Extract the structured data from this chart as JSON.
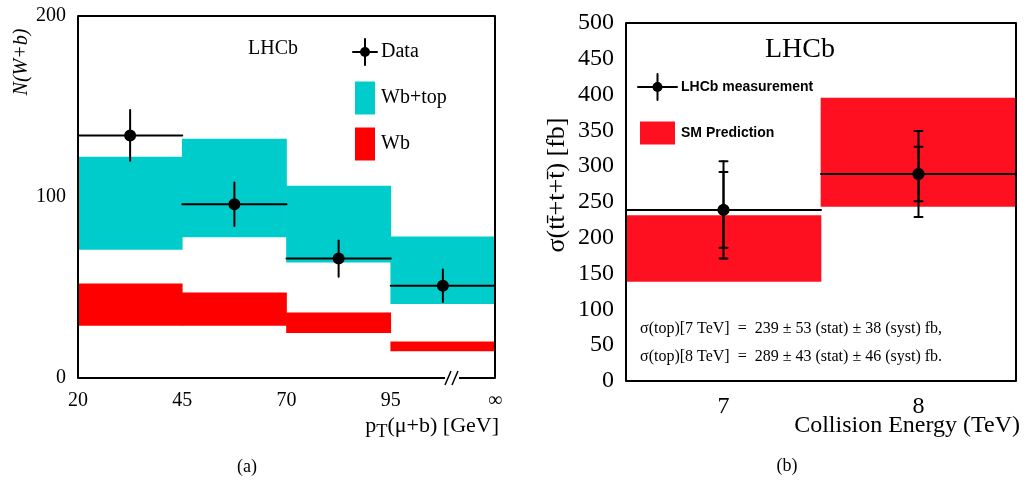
{
  "chart_data": [
    {
      "type": "bar",
      "xlabel": "p$_{T}$(μ+b) [GeV]",
      "ylabel": "N(W+b)",
      "xlim": [
        20,
        120
      ],
      "xticks": [
        20,
        45,
        70,
        95,
        {
          "value": 120,
          "label": "∞"
        }
      ],
      "ylim": [
        0,
        200
      ],
      "yticks": [
        0,
        100,
        200
      ],
      "legend": "top right",
      "annotations": [
        "LHCb",
        "(a)"
      ],
      "series": [
        {
          "name": "Wb+top",
          "color": "#00cccc",
          "x": [
            32.5,
            57.5,
            82.5,
            107.5
          ],
          "base": [
            71,
            78,
            64,
            41
          ],
          "values": [
            51,
            54,
            42,
            37
          ]
        },
        {
          "name": "Wb",
          "color": "#ff0000",
          "x": [
            32.5,
            57.5,
            82.5,
            107.5
          ],
          "base": [
            29,
            29,
            25,
            15
          ],
          "values": [
            23,
            18,
            11,
            5
          ]
        },
        {
          "name": "Data",
          "type": "scatter",
          "color": "#000000",
          "marker": "circle",
          "x": [
            32.5,
            57.5,
            82.5,
            107.5
          ],
          "values": [
            134,
            96,
            66,
            51
          ],
          "errors": [
            14,
            12,
            10,
            9
          ],
          "xerrors": [
            12.5,
            12.5,
            12.5,
            12.5
          ]
        }
      ]
    },
    {
      "type": "bar",
      "xlabel": "Collision Energy (TeV)",
      "ylabel": "σ(tt̄+t+t̄) [fb]",
      "x": [
        7,
        8
      ],
      "xlim": [
        6.5,
        8.5
      ],
      "xticks": [
        7,
        8
      ],
      "ylim": [
        0,
        500
      ],
      "yticks": [
        0,
        50,
        100,
        150,
        200,
        250,
        300,
        350,
        400,
        450,
        500
      ],
      "legend": "top left",
      "annotations": [
        "LHCb",
        "σ(top)[7 TeV]  =  239 ± 53 (stat) ± 38 (syst) fb,",
        "σ(top)[8 TeV]  =  289 ± 43 (stat) ± 46 (syst) fb.",
        "(b)"
      ],
      "series": [
        {
          "name": "SM Prediction",
          "color": "#ff1020",
          "base": [
            139,
            244
          ],
          "values": [
            92,
            151
          ]
        },
        {
          "name": "LHCb measurement",
          "type": "scatter",
          "color": "#000000",
          "marker": "circle",
          "values": [
            239,
            289
          ],
          "errors": [
            68,
            60
          ],
          "xerrors": [
            0.5,
            0.5
          ]
        },
        {
          "type": "scatter",
          "color": "#000000",
          "marker": "circle",
          "values": [
            239,
            289
          ],
          "errors": [
            53,
            38
          ]
        }
      ]
    }
  ]
}
